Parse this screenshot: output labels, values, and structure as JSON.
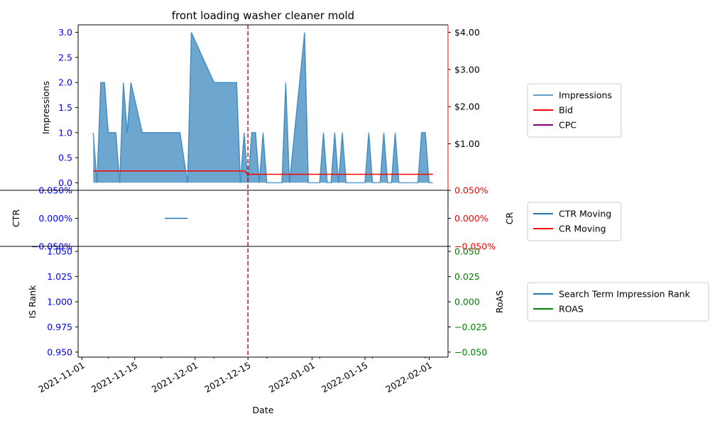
{
  "chart_data": [
    {
      "type": "area",
      "title": "front loading washer cleaner mold",
      "ylabel": "Impressions",
      "ylim": [
        -0.15,
        3.15
      ],
      "yticks": [
        "0.0",
        "0.5",
        "1.0",
        "1.5",
        "2.0",
        "2.5",
        "3.0"
      ],
      "yticks_values": [
        0,
        0.5,
        1.0,
        1.5,
        2.0,
        2.5,
        3.0
      ],
      "xlim": [
        "2021-10-31",
        "2022-02-06"
      ],
      "y2lim": [
        -0.25,
        4.2
      ],
      "y2ticks": [
        "$1.00",
        "$2.00",
        "$3.00",
        "$4.00"
      ],
      "y2ticks_values": [
        1,
        2,
        3,
        4
      ],
      "series": [
        {
          "name": "Impressions",
          "color": "#1f77b4",
          "points": [
            [
              "2021-11-04",
              1
            ],
            [
              "2021-11-05",
              0
            ],
            [
              "2021-11-06",
              2
            ],
            [
              "2021-11-07",
              2
            ],
            [
              "2021-11-08",
              1
            ],
            [
              "2021-11-10",
              1
            ],
            [
              "2021-11-11",
              0
            ],
            [
              "2021-11-12",
              2
            ],
            [
              "2021-11-13",
              1
            ],
            [
              "2021-11-14",
              2
            ],
            [
              "2021-11-17",
              1
            ],
            [
              "2021-11-27",
              1
            ],
            [
              "2021-11-29",
              0
            ],
            [
              "2021-11-30",
              3
            ],
            [
              "2021-12-06",
              2
            ],
            [
              "2021-12-12",
              2
            ],
            [
              "2021-12-13",
              0
            ],
            [
              "2021-12-14",
              1
            ],
            [
              "2021-12-15",
              0
            ],
            [
              "2021-12-16",
              1
            ],
            [
              "2021-12-17",
              1
            ],
            [
              "2021-12-18",
              0
            ],
            [
              "2021-12-19",
              1
            ],
            [
              "2021-12-20",
              0
            ],
            [
              "2021-12-24",
              0
            ],
            [
              "2021-12-25",
              2
            ],
            [
              "2021-12-26",
              0
            ],
            [
              "2021-12-30",
              3
            ],
            [
              "2021-12-31",
              0
            ],
            [
              "2022-01-03",
              0
            ],
            [
              "2022-01-04",
              1
            ],
            [
              "2022-01-05",
              0
            ],
            [
              "2022-01-06",
              0
            ],
            [
              "2022-01-07",
              1
            ],
            [
              "2022-01-08",
              0
            ],
            [
              "2022-01-09",
              1
            ],
            [
              "2022-01-10",
              0
            ],
            [
              "2022-01-15",
              0
            ],
            [
              "2022-01-16",
              1
            ],
            [
              "2022-01-17",
              0
            ],
            [
              "2022-01-19",
              0
            ],
            [
              "2022-01-20",
              1
            ],
            [
              "2022-01-21",
              0
            ],
            [
              "2022-01-22",
              0
            ],
            [
              "2022-01-23",
              1
            ],
            [
              "2022-01-24",
              0
            ],
            [
              "2022-01-29",
              0
            ],
            [
              "2022-01-30",
              1
            ],
            [
              "2022-01-31",
              1
            ],
            [
              "2022-02-01",
              0
            ],
            [
              "2022-02-02",
              0
            ]
          ]
        },
        {
          "name": "Bid",
          "color": "#ff0000",
          "axis": "right",
          "points": [
            [
              "2021-11-04",
              0.27
            ],
            [
              "2021-12-14",
              0.27
            ],
            [
              "2021-12-15",
              0.18
            ],
            [
              "2022-02-02",
              0.18
            ]
          ]
        },
        {
          "name": "CPC",
          "color": "#800080",
          "axis": "right",
          "points": []
        }
      ],
      "vline": {
        "x": "2021-12-15",
        "color": "#ff0000",
        "style": "dashed"
      },
      "legend": "right"
    },
    {
      "type": "line",
      "ylabel": "CTR",
      "y2label": "CR",
      "ylim": [
        -0.0005,
        0.0005
      ],
      "yticks": [
        "0.050%",
        "0.000%",
        "−0.050%"
      ],
      "yticks_values": [
        0.0005,
        0,
        -0.0005
      ],
      "y2ticks": [
        "0.050%",
        "0.000%",
        "−0.050%"
      ],
      "y2ticks_values": [
        0.0005,
        0,
        -0.0005
      ],
      "series": [
        {
          "name": "CTR Moving",
          "color": "#1f77b4",
          "points": [
            [
              "2021-11-23",
              0
            ],
            [
              "2021-11-29",
              0
            ]
          ]
        },
        {
          "name": "CR Moving",
          "color": "#ff0000",
          "axis": "right",
          "points": []
        }
      ],
      "legend": "right"
    },
    {
      "type": "line",
      "ylabel": "IS Rank",
      "y2label": "RoAS",
      "xlabel": "Date",
      "ylim": [
        0.945,
        1.055
      ],
      "yticks": [
        "1.050",
        "1.025",
        "1.000",
        "0.975",
        "0.950"
      ],
      "yticks_values": [
        1.05,
        1.025,
        1.0,
        0.975,
        0.95
      ],
      "y2lim": [
        -0.055,
        0.055
      ],
      "y2ticks": [
        "0.050",
        "0.025",
        "0.000",
        "−0.025",
        "−0.050"
      ],
      "y2ticks_values": [
        0.05,
        0.025,
        0.0,
        -0.025,
        -0.05
      ],
      "xticks": [
        "2021-11-01",
        "2021-11-15",
        "2021-12-01",
        "2021-12-15",
        "2022-01-01",
        "2022-01-15",
        "2022-02-01"
      ],
      "series": [
        {
          "name": "Search Term Impression Rank",
          "color": "#1f77b4",
          "points": []
        },
        {
          "name": "ROAS",
          "color": "#008000",
          "axis": "right",
          "points": []
        }
      ],
      "legend": "right"
    }
  ]
}
